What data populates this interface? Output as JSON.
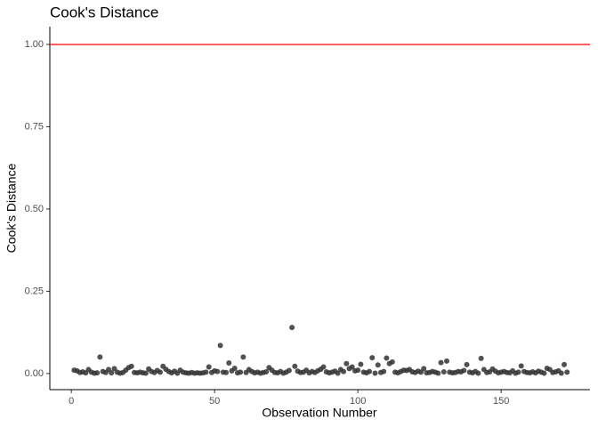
{
  "chart_data": {
    "type": "scatter",
    "title": "Cook's Distance",
    "x_label": "Observation Number",
    "y_label": "Cook's Distance",
    "x": [
      1,
      2,
      3,
      4,
      5,
      6,
      7,
      8,
      9,
      10,
      11,
      12,
      13,
      14,
      15,
      16,
      17,
      18,
      19,
      20,
      21,
      22,
      23,
      24,
      25,
      26,
      27,
      28,
      29,
      30,
      31,
      32,
      33,
      34,
      35,
      36,
      37,
      38,
      39,
      40,
      41,
      42,
      43,
      44,
      45,
      46,
      47,
      48,
      49,
      50,
      51,
      52,
      53,
      54,
      55,
      56,
      57,
      58,
      59,
      60,
      61,
      62,
      63,
      64,
      65,
      66,
      67,
      68,
      69,
      70,
      71,
      72,
      73,
      74,
      75,
      76,
      77,
      78,
      79,
      80,
      81,
      82,
      83,
      84,
      85,
      86,
      87,
      88,
      89,
      90,
      91,
      92,
      93,
      94,
      95,
      96,
      97,
      98,
      99,
      100,
      101,
      102,
      103,
      104,
      105,
      106,
      107,
      108,
      109,
      110,
      111,
      112,
      113,
      114,
      115,
      116,
      117,
      118,
      119,
      120,
      121,
      122,
      123,
      124,
      125,
      126,
      127,
      128,
      129,
      130,
      131,
      132,
      133,
      134,
      135,
      136,
      137,
      138,
      139,
      140,
      141,
      142,
      143,
      144,
      145,
      146,
      147,
      148,
      149,
      150,
      151,
      152,
      153,
      154,
      155,
      156,
      157,
      158,
      159,
      160,
      161,
      162,
      163,
      164,
      165,
      166,
      167,
      168,
      169,
      170,
      171,
      172,
      173
    ],
    "values": [
      0.01,
      0.008,
      0.003,
      0.005,
      0.002,
      0.012,
      0.004,
      0.001,
      0.002,
      0.05,
      0.006,
      0.003,
      0.012,
      0.002,
      0.015,
      0.004,
      0.001,
      0.003,
      0.01,
      0.018,
      0.022,
      0.003,
      0.002,
      0.004,
      0.002,
      0.001,
      0.014,
      0.006,
      0.003,
      0.009,
      0.004,
      0.022,
      0.013,
      0.006,
      0.002,
      0.007,
      0.001,
      0.01,
      0.004,
      0.002,
      0.001,
      0.003,
      0.001,
      0.002,
      0.001,
      0.002,
      0.004,
      0.02,
      0.003,
      0.008,
      0.006,
      0.085,
      0.004,
      0.003,
      0.032,
      0.008,
      0.016,
      0.002,
      0.004,
      0.05,
      0.003,
      0.012,
      0.006,
      0.002,
      0.004,
      0.001,
      0.003,
      0.005,
      0.018,
      0.01,
      0.003,
      0.002,
      0.006,
      0.001,
      0.004,
      0.009,
      0.14,
      0.022,
      0.007,
      0.003,
      0.004,
      0.01,
      0.002,
      0.006,
      0.003,
      0.008,
      0.013,
      0.02,
      0.005,
      0.002,
      0.004,
      0.007,
      0.001,
      0.012,
      0.006,
      0.03,
      0.015,
      0.02,
      0.008,
      0.01,
      0.028,
      0.004,
      0.002,
      0.006,
      0.048,
      0.001,
      0.026,
      0.003,
      0.006,
      0.047,
      0.03,
      0.035,
      0.004,
      0.002,
      0.006,
      0.01,
      0.009,
      0.012,
      0.005,
      0.003,
      0.007,
      0.004,
      0.015,
      0.002,
      0.003,
      0.006,
      0.004,
      0.001,
      0.033,
      0.005,
      0.038,
      0.004,
      0.002,
      0.003,
      0.006,
      0.005,
      0.009,
      0.027,
      0.004,
      0.002,
      0.006,
      0.001,
      0.046,
      0.012,
      0.003,
      0.005,
      0.014,
      0.007,
      0.002,
      0.004,
      0.006,
      0.003,
      0.002,
      0.008,
      0.001,
      0.004,
      0.023,
      0.006,
      0.003,
      0.002,
      0.005,
      0.002,
      0.007,
      0.004,
      0.001,
      0.016,
      0.012,
      0.003,
      0.005,
      0.008,
      0.001,
      0.027,
      0.004
    ],
    "color": "#333333",
    "xlim": [
      -7.5,
      181
    ],
    "ylim": [
      -0.049,
      1.054
    ],
    "xticks": [
      0,
      50,
      100,
      150
    ],
    "yticks": [
      {
        "value": 0,
        "label": "0.00"
      },
      {
        "value": 0.25,
        "label": "0.25"
      },
      {
        "value": 0.5,
        "label": "0.50"
      },
      {
        "value": 0.75,
        "label": "0.75"
      },
      {
        "value": 1,
        "label": "1.00"
      }
    ],
    "hline": {
      "value": 1,
      "color": "#ff0000"
    }
  }
}
